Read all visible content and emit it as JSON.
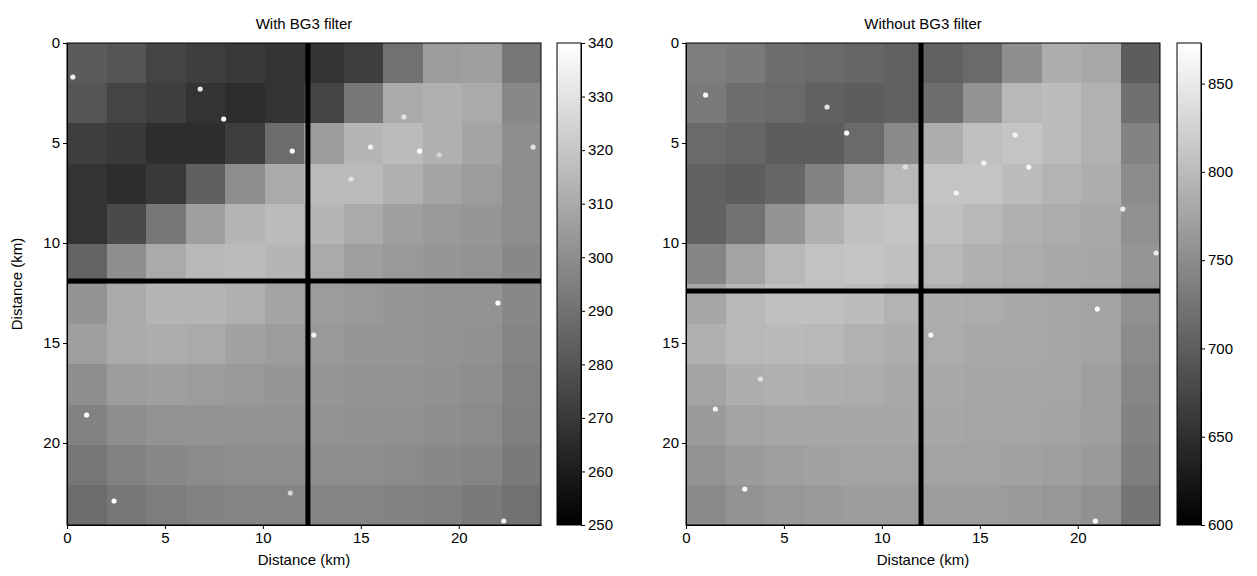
{
  "chart_data": [
    {
      "type": "heatmap",
      "title": "With BG3 filter",
      "x_label": "Distance (km)",
      "y_label": "Distance (km)",
      "xlim": [
        0,
        24.2
      ],
      "ylim": [
        24.1,
        0
      ],
      "xticks": [
        0,
        5,
        10,
        15,
        20
      ],
      "yticks": [
        0,
        5,
        10,
        15,
        20
      ],
      "cells": [
        [
          282,
          280,
          274,
          272,
          270,
          268,
          268,
          272,
          290,
          305,
          306,
          292
        ],
        [
          280,
          274,
          272,
          268,
          266,
          268,
          274,
          292,
          310,
          312,
          310,
          298
        ],
        [
          272,
          270,
          266,
          266,
          272,
          288,
          305,
          314,
          316,
          312,
          308,
          300
        ],
        [
          268,
          266,
          270,
          284,
          300,
          310,
          316,
          316,
          312,
          308,
          305,
          300
        ],
        [
          268,
          276,
          292,
          306,
          314,
          316,
          314,
          310,
          306,
          304,
          303,
          300
        ],
        [
          285,
          300,
          310,
          315,
          316,
          314,
          310,
          306,
          304,
          303,
          302,
          298
        ],
        [
          302,
          310,
          314,
          314,
          312,
          308,
          305,
          304,
          303,
          302,
          302,
          298
        ],
        [
          306,
          310,
          311,
          310,
          307,
          305,
          304,
          303,
          303,
          302,
          301,
          297
        ],
        [
          300,
          305,
          306,
          305,
          304,
          303,
          303,
          302,
          302,
          301,
          300,
          296
        ],
        [
          296,
          300,
          302,
          302,
          302,
          302,
          302,
          301,
          301,
          300,
          299,
          295
        ],
        [
          292,
          296,
          298,
          299,
          300,
          300,
          300,
          300,
          299,
          298,
          297,
          293
        ],
        [
          288,
          292,
          294,
          296,
          297,
          297,
          297,
          297,
          296,
          295,
          293,
          290
        ]
      ],
      "mask_lines": {
        "x": 12.3,
        "y": 11.9
      },
      "points": {
        "x": [
          0.3,
          8,
          11.5,
          6.8,
          17.2,
          15.5,
          18,
          14.5,
          23.8,
          22,
          12.6,
          1,
          2.4,
          22.3,
          11.4,
          19
        ],
        "y": [
          1.7,
          3.8,
          5.4,
          2.3,
          3.7,
          5.2,
          5.4,
          6.8,
          5.2,
          13,
          14.6,
          18.6,
          22.9,
          23.9,
          22.5,
          5.6
        ],
        "values": [
          335,
          340,
          340,
          330,
          330,
          335,
          340,
          330,
          330,
          340,
          335,
          340,
          340,
          335,
          325,
          325
        ]
      },
      "color_range": [
        250,
        340
      ],
      "color_ticks": [
        250,
        260,
        270,
        280,
        290,
        300,
        310,
        320,
        330,
        340
      ]
    },
    {
      "type": "heatmap",
      "title": "Without BG3 filter",
      "x_label": "Distance (km)",
      "xlim": [
        0,
        24.2
      ],
      "ylim": [
        24.1,
        0
      ],
      "xticks": [
        0,
        5,
        10,
        15,
        20
      ],
      "yticks": [
        0,
        5,
        10,
        15,
        20
      ],
      "cells": [
        [
          735,
          731,
          718,
          713,
          709,
          704,
          704,
          713,
          753,
          786,
          780,
          700
        ],
        [
          731,
          718,
          713,
          704,
          700,
          704,
          718,
          757,
          797,
          801,
          790,
          720
        ],
        [
          713,
          709,
          700,
          700,
          713,
          748,
          786,
          806,
          810,
          801,
          790,
          740
        ],
        [
          704,
          700,
          709,
          740,
          775,
          797,
          810,
          810,
          801,
          792,
          786,
          750
        ],
        [
          704,
          722,
          757,
          788,
          806,
          810,
          806,
          797,
          788,
          784,
          780,
          755
        ],
        [
          742,
          775,
          797,
          808,
          810,
          806,
          797,
          788,
          784,
          781,
          779,
          760
        ],
        [
          779,
          797,
          806,
          806,
          801,
          792,
          786,
          784,
          781,
          779,
          775,
          755
        ],
        [
          788,
          797,
          799,
          797,
          790,
          786,
          784,
          781,
          781,
          779,
          775,
          750
        ],
        [
          775,
          786,
          788,
          786,
          784,
          781,
          781,
          779,
          779,
          777,
          770,
          745
        ],
        [
          766,
          775,
          779,
          779,
          779,
          779,
          779,
          777,
          777,
          775,
          770,
          740
        ],
        [
          757,
          766,
          770,
          773,
          775,
          775,
          775,
          775,
          773,
          770,
          765,
          735
        ],
        [
          748,
          757,
          762,
          766,
          768,
          768,
          768,
          768,
          766,
          762,
          755,
          725
        ]
      ],
      "mask_lines": {
        "x": 12,
        "y": 12.4
      },
      "points": {
        "x": [
          1,
          8.2,
          16.8,
          17.5,
          15.2,
          13.8,
          21,
          12.5,
          1.5,
          3,
          20.9,
          24,
          22.3,
          11.2,
          7.2,
          3.8
        ],
        "y": [
          2.6,
          4.5,
          4.6,
          6.2,
          6,
          7.5,
          13.3,
          14.6,
          18.3,
          22.3,
          23.9,
          10.5,
          8.3,
          6.2,
          3.2,
          16.8
        ],
        "values": [
          870,
          870,
          860,
          870,
          860,
          860,
          870,
          860,
          860,
          870,
          870,
          850,
          850,
          840,
          840,
          840
        ]
      },
      "color_range": [
        600,
        873
      ],
      "color_ticks": [
        600,
        650,
        700,
        750,
        800,
        850
      ]
    }
  ]
}
